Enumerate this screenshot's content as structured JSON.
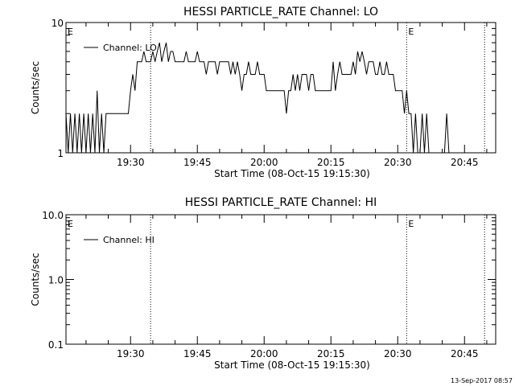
{
  "footer_timestamp": "13-Sep-2017 08:57",
  "chart_data": [
    {
      "type": "line",
      "title": "HESSI PARTICLE_RATE Channel: LO",
      "xlabel": "Start Time (08-Oct-15 19:15:30)",
      "ylabel": "Counts/sec",
      "y_scale": "log",
      "ylim": [
        1,
        10
      ],
      "y_ticks": [
        "10",
        "1"
      ],
      "x_tick_labels": [
        "19:30",
        "19:45",
        "20:00",
        "20:15",
        "20:30",
        "20:45"
      ],
      "legend": "top-left",
      "event_markers": [
        {
          "label": "E",
          "time": "19:15:30"
        },
        {
          "label": "",
          "time": "19:34:30"
        },
        {
          "label": "E",
          "time": "20:32:00"
        },
        {
          "label": "",
          "time": "20:49:30"
        }
      ],
      "series": [
        {
          "name": "Channel: LO",
          "time_minutes_after_start": [
            0,
            0.5,
            1,
            1.5,
            2,
            2.5,
            3,
            3.5,
            4,
            4.5,
            5,
            5.5,
            6,
            6.5,
            7,
            7.5,
            8,
            8.5,
            9,
            9.5,
            10,
            10.5,
            11,
            11.5,
            12,
            12.5,
            13,
            13.5,
            14,
            14.5,
            15,
            15.5,
            16,
            16.5,
            17,
            17.5,
            18,
            18.5,
            19,
            19.5,
            20,
            20.5,
            21,
            21.5,
            22,
            22.5,
            23,
            23.5,
            24,
            24.5,
            25,
            25.5,
            26,
            26.5,
            27,
            27.5,
            28,
            28.5,
            29,
            29.5,
            30,
            30.5,
            31,
            31.5,
            32,
            32.5,
            33,
            33.5,
            34,
            34.5,
            35,
            35.5,
            36,
            36.5,
            37,
            37.5,
            38,
            38.5,
            39,
            39.5,
            40,
            40.5,
            41,
            41.5,
            42,
            42.5,
            43,
            43.5,
            44,
            44.5,
            45,
            45.5,
            46,
            46.5,
            47,
            47.5,
            48,
            48.5,
            49,
            49.5,
            50,
            50.5,
            51,
            51.5,
            52,
            52.5,
            53,
            53.5,
            54,
            54.5,
            55,
            55.5,
            56,
            56.5,
            57,
            57.5,
            58,
            58.5,
            59,
            59.5,
            60,
            60.5,
            61,
            61.5,
            62,
            62.5,
            63,
            63.5,
            64,
            64.5,
            65,
            65.5,
            66,
            66.5,
            67,
            67.5,
            68,
            68.5,
            69,
            69.5,
            70,
            70.5,
            71,
            71.5,
            72,
            72.5,
            73,
            73.5,
            74,
            74.5,
            75,
            75.5,
            76,
            76.5,
            77,
            77.5,
            78,
            78.5,
            79,
            79.5,
            80,
            80.5,
            81,
            81.5,
            82,
            82.5,
            83,
            83.5,
            84,
            84.5,
            85,
            85.5,
            86,
            86.5,
            87,
            87.5,
            88,
            88.5,
            89,
            89.5,
            90,
            90.5,
            91,
            91.5,
            92,
            92.5,
            93
          ],
          "values": [
            2,
            1,
            2,
            1,
            2,
            1,
            2,
            1,
            2,
            1,
            2,
            1,
            2,
            1,
            3,
            1,
            2,
            1,
            2,
            2,
            2,
            2,
            2,
            2,
            2,
            2,
            2,
            2,
            2,
            3,
            4,
            3,
            5,
            5,
            5,
            6,
            5,
            5,
            5,
            6,
            5,
            6,
            7,
            5,
            6,
            7,
            5,
            6,
            6,
            5,
            5,
            5,
            5,
            5,
            6,
            5,
            5,
            5,
            5,
            6,
            5,
            5,
            5,
            4,
            5,
            5,
            5,
            5,
            4,
            5,
            5,
            5,
            5,
            5,
            4,
            5,
            4,
            5,
            4,
            3,
            4,
            4,
            5,
            4,
            4,
            4,
            5,
            4,
            4,
            4,
            3,
            3,
            3,
            3,
            3,
            3,
            3,
            3,
            3,
            2,
            3,
            3,
            4,
            3,
            4,
            3,
            4,
            4,
            4,
            3,
            4,
            4,
            3,
            3,
            3,
            3,
            3,
            3,
            3,
            3,
            5,
            3,
            4,
            5,
            4,
            4,
            4,
            4,
            4,
            5,
            4,
            6,
            5,
            6,
            5,
            4,
            5,
            5,
            5,
            4,
            4,
            5,
            4,
            4,
            5,
            4,
            4,
            4,
            3,
            3,
            3,
            3,
            2,
            3,
            2,
            2,
            1,
            2,
            1,
            1,
            2,
            1,
            2,
            1,
            1,
            1,
            1,
            1,
            1,
            1,
            1,
            2,
            1,
            1,
            1,
            1,
            1,
            1,
            1
          ]
        }
      ]
    },
    {
      "type": "line",
      "title": "HESSI PARTICLE_RATE Channel: HI",
      "xlabel": "Start Time (08-Oct-15 19:15:30)",
      "ylabel": "Counts/sec",
      "y_scale": "log",
      "ylim": [
        0.1,
        10
      ],
      "y_ticks": [
        "10.0",
        "1.0",
        "0.1"
      ],
      "x_tick_labels": [
        "19:30",
        "19:45",
        "20:00",
        "20:15",
        "20:30",
        "20:45"
      ],
      "legend": "top-left",
      "event_markers": [
        {
          "label": "E",
          "time": "19:15:30"
        },
        {
          "label": "",
          "time": "19:34:30"
        },
        {
          "label": "E",
          "time": "20:32:00"
        },
        {
          "label": "",
          "time": "20:49:30"
        }
      ],
      "series": [
        {
          "name": "Channel: HI",
          "time_minutes_after_start": [],
          "values": []
        }
      ]
    }
  ]
}
